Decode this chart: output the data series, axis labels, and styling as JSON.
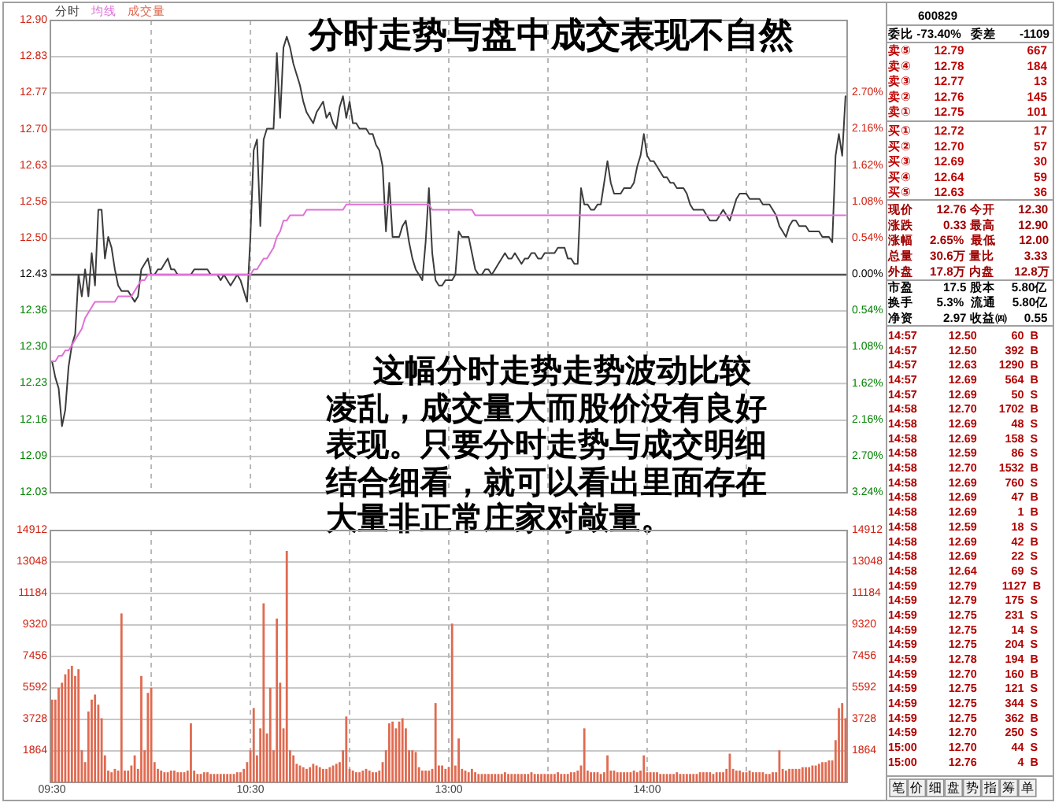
{
  "chart_data": [
    {
      "type": "line",
      "title": "分时走势与盘中成交表现不自然",
      "annotations": [
        "这幅分时走势走势波动比较凌乱，成交量大而股价没有良好表现。只要分时走势与成交明细结合细看，就可以看出里面存在大量非正常庄家对敲量。"
      ],
      "categories": [
        null,
        null,
        null,
        null,
        null,
        null,
        null,
        null,
        null,
        null,
        null,
        null,
        null,
        null,
        null,
        null,
        null,
        null,
        null,
        null,
        null,
        null,
        null,
        null,
        null,
        null,
        null,
        null,
        null,
        null,
        null,
        null,
        null,
        null,
        null,
        null,
        null,
        null,
        null,
        null,
        null,
        null,
        null,
        null,
        null,
        null,
        null,
        null,
        null,
        null,
        null,
        null,
        null,
        null,
        null,
        null,
        null,
        null,
        null,
        null,
        null,
        null,
        null,
        null,
        null,
        null,
        null,
        null,
        null,
        null,
        null,
        null,
        null,
        null,
        null,
        null,
        null,
        null,
        null,
        null,
        null,
        null,
        null,
        null,
        null,
        null,
        null,
        null,
        null,
        null,
        null,
        null,
        null,
        null,
        null,
        null,
        null,
        null,
        null,
        null,
        null,
        null,
        null,
        null,
        null,
        null,
        null,
        null,
        null,
        null,
        null,
        null,
        null,
        null,
        null,
        null,
        null,
        null,
        null,
        null,
        null,
        null,
        null,
        null,
        null,
        null,
        null,
        null,
        null,
        null,
        null,
        null,
        null,
        null,
        null,
        null,
        null,
        null,
        null,
        null,
        null,
        null,
        null,
        null,
        null,
        null,
        null,
        null,
        null,
        null,
        null,
        null,
        null,
        null,
        null,
        null,
        null,
        null,
        null,
        null,
        null,
        null,
        null,
        null,
        null,
        null,
        null,
        null,
        null,
        null,
        null,
        null,
        null,
        null,
        null,
        null,
        null,
        null,
        null,
        null,
        null,
        null,
        null,
        null,
        null,
        null,
        null,
        null,
        null,
        null,
        null,
        null,
        null,
        null,
        null,
        null,
        null,
        null,
        null,
        null,
        null,
        null,
        null,
        null,
        null,
        null,
        null,
        null,
        null,
        null,
        null,
        null,
        null,
        null,
        null,
        null,
        null,
        null,
        null,
        null,
        null,
        null,
        null,
        null,
        null,
        null,
        null,
        null,
        null,
        null,
        null,
        null,
        null,
        null,
        null,
        null,
        null,
        null,
        null,
        null,
        null
      ],
      "series": [
        {
          "name": "分时",
          "color": "#3c3c3c",
          "values": [
            12.27,
            12.24,
            12.22,
            12.15,
            12.18,
            12.26,
            12.3,
            12.32,
            12.43,
            12.39,
            12.44,
            12.39,
            12.47,
            12.41,
            12.55,
            12.55,
            12.46,
            12.5,
            12.48,
            12.44,
            12.41,
            12.4,
            12.4,
            12.4,
            12.39,
            12.38,
            12.39,
            12.44,
            12.45,
            12.46,
            12.43,
            12.43,
            12.44,
            12.44,
            12.45,
            12.46,
            12.44,
            12.44,
            12.43,
            12.43,
            12.43,
            12.43,
            12.43,
            12.44,
            12.44,
            12.44,
            12.44,
            12.44,
            12.43,
            12.43,
            12.43,
            12.42,
            12.43,
            12.42,
            12.41,
            12.42,
            12.43,
            12.42,
            12.4,
            12.38,
            12.5,
            12.66,
            12.68,
            12.52,
            12.68,
            12.7,
            12.7,
            12.7,
            12.84,
            12.72,
            12.85,
            12.87,
            12.85,
            12.82,
            12.8,
            12.78,
            12.75,
            12.73,
            12.72,
            12.71,
            12.73,
            12.74,
            12.75,
            12.72,
            12.73,
            12.71,
            12.7,
            12.74,
            12.76,
            12.72,
            12.75,
            12.71,
            12.71,
            12.7,
            12.7,
            12.7,
            12.69,
            12.69,
            12.67,
            12.66,
            12.63,
            12.51,
            12.6,
            12.5,
            12.5,
            12.5,
            12.52,
            12.53,
            12.49,
            12.46,
            12.44,
            12.43,
            12.42,
            12.49,
            12.59,
            12.47,
            12.42,
            12.41,
            12.41,
            12.42,
            12.42,
            12.42,
            12.43,
            12.51,
            12.5,
            12.5,
            12.5,
            12.47,
            12.44,
            12.43,
            12.43,
            12.44,
            12.44,
            12.43,
            12.44,
            12.45,
            12.46,
            12.47,
            12.46,
            12.46,
            12.47,
            12.46,
            12.45,
            12.46,
            12.46,
            12.47,
            12.47,
            12.46,
            12.46,
            12.47,
            12.47,
            12.47,
            12.47,
            12.48,
            12.48,
            12.48,
            12.46,
            12.46,
            12.45,
            12.45,
            12.59,
            12.56,
            12.56,
            12.55,
            12.55,
            12.56,
            12.56,
            12.6,
            12.64,
            12.6,
            12.58,
            12.58,
            12.58,
            12.59,
            12.59,
            12.59,
            12.6,
            12.63,
            12.65,
            12.69,
            12.65,
            12.64,
            12.64,
            12.63,
            12.62,
            12.61,
            12.61,
            12.6,
            12.6,
            12.59,
            12.59,
            12.59,
            12.58,
            12.56,
            12.55,
            12.55,
            12.55,
            12.55,
            12.54,
            12.53,
            12.53,
            12.53,
            12.54,
            12.55,
            12.54,
            12.53,
            12.55,
            12.57,
            12.58,
            12.58,
            12.58,
            12.57,
            12.57,
            12.57,
            12.57,
            12.56,
            12.56,
            12.56,
            12.55,
            12.54,
            12.52,
            12.51,
            12.5,
            12.52,
            12.53,
            12.53,
            12.52,
            12.52,
            12.52,
            12.51,
            12.51,
            12.51,
            12.51,
            12.5,
            12.5,
            12.5,
            12.49,
            12.65,
            12.69,
            12.65,
            12.76
          ]
        },
        {
          "name": "均线",
          "color": "#e070d8",
          "values": [
            12.27,
            12.27,
            12.28,
            12.28,
            12.29,
            12.29,
            12.3,
            12.31,
            12.32,
            12.33,
            12.35,
            12.36,
            12.37,
            12.38,
            12.38,
            12.38,
            12.38,
            12.38,
            12.38,
            12.38,
            12.39,
            12.39,
            12.39,
            12.39,
            12.39,
            12.4,
            12.41,
            12.42,
            12.42,
            12.43,
            12.43,
            12.43,
            12.43,
            12.43,
            12.43,
            12.43,
            12.43,
            12.43,
            12.43,
            12.43,
            12.43,
            12.43,
            12.43,
            12.43,
            12.43,
            12.43,
            12.43,
            12.43,
            12.43,
            12.43,
            12.43,
            12.43,
            12.43,
            12.43,
            12.43,
            12.43,
            12.43,
            12.43,
            12.43,
            12.43,
            12.43,
            12.44,
            12.44,
            12.45,
            12.46,
            12.46,
            12.47,
            12.48,
            12.5,
            12.51,
            12.53,
            12.53,
            12.54,
            12.54,
            12.54,
            12.54,
            12.54,
            12.55,
            12.55,
            12.55,
            12.55,
            12.55,
            12.55,
            12.55,
            12.55,
            12.55,
            12.55,
            12.55,
            12.55,
            12.56,
            12.56,
            12.56,
            12.56,
            12.56,
            12.56,
            12.56,
            12.56,
            12.56,
            12.56,
            12.56,
            12.56,
            12.56,
            12.56,
            12.56,
            12.56,
            12.56,
            12.56,
            12.56,
            12.56,
            12.56,
            12.56,
            12.56,
            12.56,
            12.56,
            12.56,
            12.55,
            12.55,
            12.55,
            12.55,
            12.55,
            12.55,
            12.55,
            12.55,
            12.55,
            12.55,
            12.55,
            12.55,
            12.55,
            12.54,
            12.54,
            12.54,
            12.54,
            12.54,
            12.54,
            12.54,
            12.54,
            12.54,
            12.54,
            12.54,
            12.54,
            12.54,
            12.54,
            12.54,
            12.54,
            12.54,
            12.54,
            12.54,
            12.54,
            12.54,
            12.54,
            12.54,
            12.54,
            12.54,
            12.54,
            12.54,
            12.54,
            12.54,
            12.54,
            12.54,
            12.54,
            12.54,
            12.54,
            12.54,
            12.54,
            12.54,
            12.54,
            12.54,
            12.54,
            12.54,
            12.54,
            12.54,
            12.54,
            12.54,
            12.54,
            12.54,
            12.54,
            12.54,
            12.54,
            12.54,
            12.54,
            12.54,
            12.54,
            12.54,
            12.54,
            12.54,
            12.54,
            12.54,
            12.54,
            12.54,
            12.54,
            12.54,
            12.54,
            12.54,
            12.54,
            12.54,
            12.54,
            12.54,
            12.54,
            12.54,
            12.54,
            12.54,
            12.54,
            12.54,
            12.54,
            12.54,
            12.54,
            12.54,
            12.54,
            12.54,
            12.54,
            12.54,
            12.54,
            12.54,
            12.54,
            12.54,
            12.54,
            12.54,
            12.54,
            12.54,
            12.54,
            12.54,
            12.54,
            12.54,
            12.54,
            12.54,
            12.54,
            12.54,
            12.54,
            12.54,
            12.54,
            12.54,
            12.54,
            12.54,
            12.54,
            12.54,
            12.54,
            12.54,
            12.54,
            12.54,
            12.54,
            12.54
          ]
        }
      ],
      "ylim": [
        12.027,
        12.9
      ],
      "yticks": [
        {
          "value": 12.9,
          "label": "12.90"
        },
        {
          "value": 12.833,
          "label": "12.83"
        },
        {
          "value": 12.766,
          "label": "12.77"
        },
        {
          "value": 12.698,
          "label": "12.70"
        },
        {
          "value": 12.631,
          "label": "12.63"
        },
        {
          "value": 12.564,
          "label": "12.56"
        },
        {
          "value": 12.497,
          "label": "12.50"
        },
        {
          "value": 12.43,
          "label": "12.43"
        },
        {
          "value": 12.363,
          "label": "12.36"
        },
        {
          "value": 12.296,
          "label": "12.30"
        },
        {
          "value": 12.229,
          "label": "12.23"
        },
        {
          "value": 12.161,
          "label": "12.16"
        },
        {
          "value": 12.094,
          "label": "12.09"
        },
        {
          "value": 12.027,
          "label": "12.03"
        }
      ],
      "y2lim": [
        -3.24,
        3.78
      ],
      "y2ticks": [
        {
          "value": 2.7,
          "label": "2.70%"
        },
        {
          "value": 2.16,
          "label": "2.16%"
        },
        {
          "value": 1.62,
          "label": "1.62%"
        },
        {
          "value": 1.08,
          "label": "1.08%"
        },
        {
          "value": 0.54,
          "label": "0.54%"
        },
        {
          "value": 0,
          "label": "0.00%"
        },
        {
          "value": -0.54,
          "label": "0.54%"
        },
        {
          "value": -1.08,
          "label": "1.08%"
        },
        {
          "value": -1.62,
          "label": "1.62%"
        },
        {
          "value": -2.16,
          "label": "2.16%"
        },
        {
          "value": -2.7,
          "label": "2.70%"
        },
        {
          "value": -3.24,
          "label": "3.24%"
        }
      ],
      "tick_labels": "y",
      "grid": true,
      "legend": "top left"
    },
    {
      "type": "bar",
      "categories": [
        "09:30",
        null,
        null,
        null,
        null,
        null,
        null,
        null,
        null,
        null,
        null,
        null,
        null,
        null,
        null,
        null,
        null,
        null,
        null,
        null,
        null,
        null,
        null,
        null,
        null,
        null,
        null,
        null,
        null,
        null,
        null,
        null,
        null,
        null,
        null,
        null,
        null,
        null,
        null,
        null,
        null,
        null,
        null,
        null,
        null,
        null,
        null,
        null,
        null,
        null,
        null,
        null,
        null,
        null,
        null,
        null,
        null,
        null,
        null,
        null,
        "10:30",
        null,
        null,
        null,
        null,
        null,
        null,
        null,
        null,
        null,
        null,
        null,
        null,
        null,
        null,
        null,
        null,
        null,
        null,
        null,
        null,
        null,
        null,
        null,
        null,
        null,
        null,
        null,
        null,
        null,
        null,
        null,
        null,
        null,
        null,
        null,
        null,
        null,
        null,
        null,
        null,
        null,
        null,
        null,
        null,
        null,
        null,
        null,
        null,
        null,
        null,
        null,
        null,
        null,
        null,
        null,
        null,
        null,
        null,
        null,
        "13:00",
        null,
        null,
        null,
        null,
        null,
        null,
        null,
        null,
        null,
        null,
        null,
        null,
        null,
        null,
        null,
        null,
        null,
        null,
        null,
        null,
        null,
        null,
        null,
        null,
        null,
        null,
        null,
        null,
        null,
        null,
        null,
        null,
        null,
        null,
        null,
        null,
        null,
        null,
        null,
        null,
        null,
        null,
        null,
        null,
        null,
        null,
        null,
        null,
        null,
        null,
        null,
        null,
        null,
        null,
        null,
        null,
        null,
        null,
        null,
        "14:00",
        null,
        null,
        null,
        null,
        null,
        null,
        null,
        null,
        null,
        null,
        null,
        null,
        null,
        null,
        null,
        null,
        null,
        null,
        null,
        null,
        null,
        null,
        null,
        null,
        null,
        null,
        null,
        null,
        null,
        null,
        null,
        null,
        null,
        null,
        null,
        null,
        null,
        null,
        null,
        null,
        null,
        null,
        null,
        null,
        null,
        null,
        null,
        null,
        null,
        null,
        null,
        null,
        null,
        null,
        null,
        null,
        null,
        null,
        null,
        null
      ],
      "series": [
        {
          "name": "成交量",
          "color": "#e06a50",
          "values": [
            4900,
            4900,
            5600,
            5900,
            6400,
            6700,
            6900,
            6300,
            6700,
            1900,
            1200,
            4200,
            4900,
            5200,
            4600,
            3800,
            1600,
            700,
            600,
            800,
            700,
            10000,
            700,
            700,
            1000,
            1600,
            800,
            6300,
            1900,
            5300,
            5600,
            1200,
            800,
            700,
            600,
            600,
            700,
            700,
            600,
            600,
            600,
            700,
            3500,
            700,
            500,
            500,
            600,
            600,
            500,
            500,
            500,
            500,
            500,
            500,
            500,
            500,
            600,
            600,
            800,
            1200,
            1900,
            4400,
            1600,
            3200,
            10600,
            2900,
            5600,
            1900,
            9700,
            5900,
            3200,
            13700,
            1900,
            1600,
            1100,
            1000,
            900,
            800,
            900,
            1100,
            1000,
            900,
            800,
            800,
            900,
            1000,
            1100,
            1200,
            1900,
            3900,
            800,
            700,
            600,
            600,
            700,
            800,
            700,
            600,
            600,
            700,
            1200,
            1900,
            3500,
            3600,
            3200,
            3600,
            3800,
            3200,
            1900,
            1900,
            1800,
            900,
            700,
            700,
            700,
            800,
            4700,
            1000,
            1000,
            800,
            900,
            9400,
            1000,
            2600,
            800,
            700,
            600,
            800,
            600,
            500,
            500,
            500,
            500,
            500,
            500,
            500,
            500,
            600,
            500,
            500,
            500,
            500,
            500,
            500,
            500,
            600,
            500,
            500,
            500,
            500,
            500,
            500,
            500,
            600,
            500,
            500,
            500,
            600,
            600,
            700,
            1000,
            3200,
            700,
            600,
            600,
            600,
            500,
            600,
            1600,
            700,
            700,
            600,
            600,
            600,
            600,
            600,
            700,
            600,
            700,
            1600,
            600,
            600,
            600,
            600,
            500,
            500,
            500,
            500,
            500,
            600,
            500,
            500,
            500,
            500,
            500,
            500,
            600,
            600,
            600,
            600,
            500,
            600,
            600,
            600,
            800,
            1700,
            800,
            700,
            700,
            600,
            600,
            700,
            600,
            600,
            600,
            600,
            500,
            500,
            600,
            600,
            1900,
            800,
            700,
            800,
            800,
            800,
            800,
            900,
            900,
            900,
            1000,
            1000,
            1100,
            1200,
            1200,
            1300,
            1300,
            2500,
            4400,
            4700,
            3800
          ]
        }
      ],
      "ylim": [
        0,
        14912
      ],
      "yticks": [
        1864,
        3728,
        5592,
        7456,
        9320,
        11184,
        13048,
        14912
      ],
      "y2lim": [
        0,
        14912
      ],
      "y2ticks": [
        1864,
        3728,
        5592,
        7456,
        9320,
        11184,
        13048,
        14912
      ],
      "grid": true,
      "legend": "top left"
    },
    {
      "type": "other",
      "annotations": [
        "600829",
        "委比 -73.40% 委差 -1109",
        "卖⑤ 12.79 667",
        "卖④ 12.78 184",
        "卖③ 12.77 13",
        "卖② 12.76 145",
        "卖① 12.75 101",
        "买① 12.72 17",
        "买② 12.70 57",
        "买③ 12.69 30",
        "买④ 12.64 59",
        "买⑤ 12.63 36",
        "现价 12.76 今开 12.30",
        "涨跌 0.33 最高 12.90",
        "涨幅 2.65% 最低 12.00",
        "总量 30.6万 量比 3.33",
        "外盘 17.8万 内盘 12.8万",
        "市盈 17.5 股本 5.80亿",
        "换手 5.3% 流通 5.80亿",
        "净资 2.97 收益㈣ 0.55",
        "笔",
        "价",
        "细",
        "盘",
        "势",
        "指",
        "筹",
        "单"
      ]
    },
    {
      "type": "other",
      "annotations": [
        "14:57 12.50 60 B",
        "14:57 12.50 392 B",
        "14:57 12.63 1290 B",
        "14:57 12.69 564 B",
        "14:57 12.69 50 S",
        "14:58 12.70 1702 B",
        "14:58 12.69 48 S",
        "14:58 12.69 158 S",
        "14:58 12.59 86 S",
        "14:58 12.70 1532 B",
        "14:58 12.69 760 S",
        "14:58 12.69 47 B",
        "14:58 12.69 1 B",
        "14:58 12.59 18 S",
        "14:58 12.69 42 B",
        "14:58 12.69 22 S",
        "14:58 12.64 69 S",
        "14:59 12.79 1127 B",
        "14:59 12.79 175 S",
        "14:59 12.75 231 S",
        "14:59 12.75 14 S",
        "14:59 12.75 204 S",
        "14:59 12.78 194 B",
        "14:59 12.70 160 B",
        "14:59 12.75 121 S",
        "14:59 12.75 344 S",
        "14:59 12.75 362 B",
        "14:59 12.70 250 S",
        "15:00 12.70 44 S",
        "15:00 12.76 4 B"
      ]
    }
  ]
}
